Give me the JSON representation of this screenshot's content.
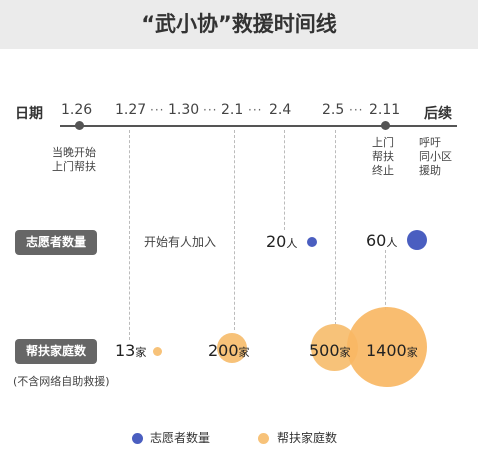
{
  "title": "“武小协”救援时间线",
  "axis_label": "日期",
  "end_label": "后续",
  "dates": [
    "1.26",
    "1.27",
    "1.30",
    "2.1",
    "2.4",
    "2.5",
    "2.11"
  ],
  "ellipsis": "···",
  "notes": {
    "jan26": [
      "当晚开始",
      "上门帮扶"
    ],
    "feb11": [
      "上门",
      "帮扶",
      "终止"
    ],
    "later": [
      "呼吁",
      "同小区",
      "援助"
    ]
  },
  "volunteers": {
    "label": "志愿者数量",
    "start_text": "开始有人加入",
    "feb4": {
      "value": "20",
      "unit": "人"
    },
    "feb11": {
      "value": "60",
      "unit": "人"
    }
  },
  "households": {
    "label": "帮扶家庭数",
    "sublabel": "(不含网络自助救援)",
    "jan27": {
      "value": "13",
      "unit": "家"
    },
    "feb1": {
      "value": "200",
      "unit": "家"
    },
    "feb5": {
      "value": "500",
      "unit": "家"
    },
    "feb11": {
      "value": "1400",
      "unit": "家"
    }
  },
  "legend": {
    "volunteers": "志愿者数量",
    "households": "帮扶家庭数"
  },
  "colors": {
    "volunteer": "#4a5ec0",
    "household": "#f7c279",
    "label_bg": "#666666",
    "header_bg": "#ebebeb"
  }
}
